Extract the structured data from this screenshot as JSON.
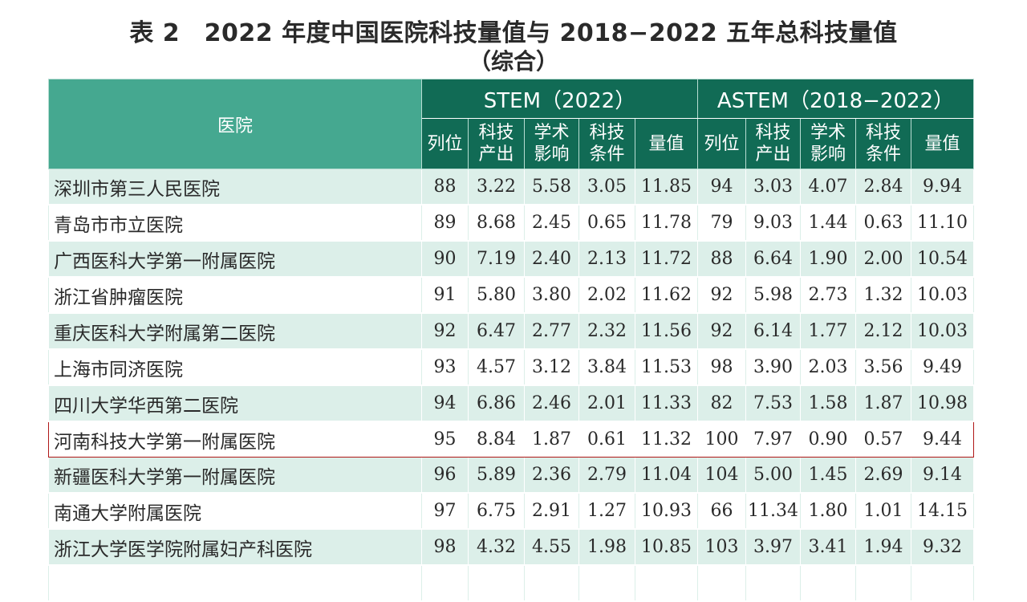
{
  "title": "表 2　2022 年度中国医院科技量值与 2018−2022 五年总科技量值",
  "subtitle": "（综合）",
  "header": {
    "hospital": "医院",
    "stem_group": "STEM（2022）",
    "astem_group": "ASTEM（2018−2022）",
    "stem_cols": [
      "列位",
      "科技\n产出",
      "学术\n影响",
      "科技\n条件",
      "量值"
    ],
    "astem_cols": [
      "列位",
      "科技\n产出",
      "学术\n影响",
      "科技\n条件",
      "量值"
    ]
  },
  "rows": [
    {
      "name": "深圳市第三人民医院",
      "stem": [
        "88",
        "3.22",
        "5.58",
        "3.05",
        "11.85"
      ],
      "astem": [
        "94",
        "3.03",
        "4.07",
        "2.84",
        "9.94"
      ]
    },
    {
      "name": "青岛市市立医院",
      "stem": [
        "89",
        "8.68",
        "2.45",
        "0.65",
        "11.78"
      ],
      "astem": [
        "79",
        "9.03",
        "1.44",
        "0.63",
        "11.10"
      ]
    },
    {
      "name": "广西医科大学第一附属医院",
      "stem": [
        "90",
        "7.19",
        "2.40",
        "2.13",
        "11.72"
      ],
      "astem": [
        "88",
        "6.64",
        "1.90",
        "2.00",
        "10.54"
      ]
    },
    {
      "name": "浙江省肿瘤医院",
      "stem": [
        "91",
        "5.80",
        "3.80",
        "2.02",
        "11.62"
      ],
      "astem": [
        "92",
        "5.98",
        "2.73",
        "1.32",
        "10.03"
      ]
    },
    {
      "name": "重庆医科大学附属第二医院",
      "stem": [
        "92",
        "6.47",
        "2.77",
        "2.32",
        "11.56"
      ],
      "astem": [
        "92",
        "6.14",
        "1.77",
        "2.12",
        "10.03"
      ]
    },
    {
      "name": "上海市同济医院",
      "stem": [
        "93",
        "4.57",
        "3.12",
        "3.84",
        "11.53"
      ],
      "astem": [
        "98",
        "3.90",
        "2.03",
        "3.56",
        "9.49"
      ]
    },
    {
      "name": "四川大学华西第二医院",
      "stem": [
        "94",
        "6.86",
        "2.46",
        "2.01",
        "11.33"
      ],
      "astem": [
        "82",
        "7.53",
        "1.58",
        "1.87",
        "10.98"
      ]
    },
    {
      "name": "河南科技大学第一附属医院",
      "stem": [
        "95",
        "8.84",
        "1.87",
        "0.61",
        "11.32"
      ],
      "astem": [
        "100",
        "7.97",
        "0.90",
        "0.57",
        "9.44"
      ],
      "highlight": true
    },
    {
      "name": "新疆医科大学第一附属医院",
      "stem": [
        "96",
        "5.89",
        "2.36",
        "2.79",
        "11.04"
      ],
      "astem": [
        "104",
        "5.00",
        "1.45",
        "2.69",
        "9.14"
      ]
    },
    {
      "name": "南通大学附属医院",
      "stem": [
        "97",
        "6.75",
        "2.91",
        "1.27",
        "10.93"
      ],
      "astem": [
        "66",
        "11.34",
        "1.80",
        "1.01",
        "14.15"
      ]
    },
    {
      "name": "浙江大学医学院附属妇产科医院",
      "stem": [
        "98",
        "4.32",
        "4.55",
        "1.98",
        "10.85"
      ],
      "astem": [
        "103",
        "3.97",
        "3.41",
        "1.94",
        "9.32"
      ]
    },
    {
      "name": "",
      "stem": [
        "",
        "",
        "",
        "",
        ""
      ],
      "astem": [
        "",
        "",
        "",
        "",
        ""
      ]
    }
  ]
}
